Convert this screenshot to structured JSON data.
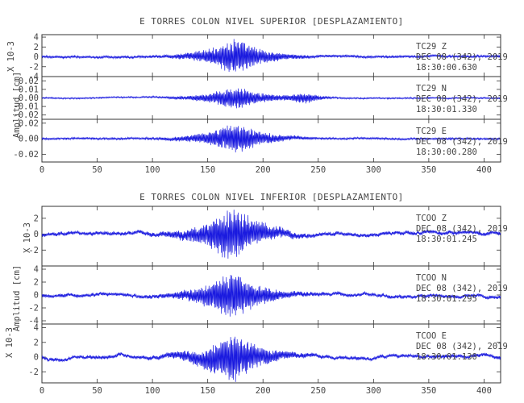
{
  "colors": {
    "trace": "#1a1adf",
    "axes": "#333333",
    "text": "#444444"
  },
  "xaxis": {
    "range": [
      0,
      415
    ],
    "ticks": [
      "0",
      "50",
      "100",
      "150",
      "200",
      "250",
      "300",
      "350",
      "400"
    ]
  },
  "top": {
    "title": "E TORRES COLON NIVEL SUPERIOR [DESPLAZAMIENTO]",
    "ylabel": "Amplitud [cm]",
    "multiplier_label": "X 10-3",
    "panels": [
      {
        "station": "TC29",
        "component": "Z",
        "date": "DEC 08 (342), 2019",
        "time": "18:30:00.630",
        "ylim": [
          -4,
          4.5
        ],
        "ticks": [
          "4",
          "2",
          "0",
          "-2",
          "-4"
        ],
        "amp": 3.6
      },
      {
        "station": "TC29",
        "component": "N",
        "date": "DEC 08 (342), 2019",
        "time": "18:30:01.330",
        "ylim": [
          -0.025,
          0.025
        ],
        "ticks": [
          "0.02",
          "0.01",
          "0.00",
          "-0.01",
          "-0.02"
        ],
        "amp": 0.013
      },
      {
        "station": "TC29",
        "component": "E",
        "date": "DEC 08 (342), 2019",
        "time": "18:30:00.280",
        "ylim": [
          -0.03,
          0.025
        ],
        "ticks": [
          "0.02",
          "0.00",
          "-0.02"
        ],
        "amp": 0.02
      }
    ]
  },
  "bottom": {
    "title": "E TORRES COLON NIVEL INFERIOR [DESPLAZAMIENTO]",
    "ylabel": "Amplitud [cm]",
    "multiplier_label": "X 10-3",
    "panels": [
      {
        "station": "TCOO",
        "component": "Z",
        "date": "DEC 08 (342), 2019",
        "time": "18:30:01.245",
        "ylim": [
          -4,
          3.5
        ],
        "ticks": [
          "2",
          "0",
          "-2"
        ],
        "amp": 3.3
      },
      {
        "station": "TCOO",
        "component": "N",
        "date": "DEC 08 (342), 2019",
        "time": "18:30:01.295",
        "ylim": [
          -4.5,
          4.5
        ],
        "ticks": [
          "4",
          "2",
          "0",
          "-2",
          "-4"
        ],
        "amp": 3.8
      },
      {
        "station": "TCOO",
        "component": "E",
        "date": "DEC 08 (342), 2019",
        "time": "18:30:01.130",
        "ylim": [
          -3.5,
          4.5
        ],
        "ticks": [
          "4",
          "2",
          "0",
          "-2"
        ],
        "amp": 3.4
      }
    ]
  },
  "chart_data": [
    {
      "type": "line",
      "title": "E TORRES COLON NIVEL SUPERIOR [DESPLAZAMIENTO]",
      "xlabel": "",
      "ylabel": "Amplitud [cm]",
      "xlim": [
        0,
        415
      ],
      "series": [
        {
          "name": "TC29 Z",
          "ylim": [
            -4,
            4.5
          ],
          "envelope_peak_x": 175,
          "peak_abs_amplitude": 3.6
        },
        {
          "name": "TC29 N",
          "ylim": [
            -0.025,
            0.025
          ],
          "envelope_peak_x": 180,
          "peak_abs_amplitude": 0.013
        },
        {
          "name": "TC29 E",
          "ylim": [
            -0.03,
            0.025
          ],
          "envelope_peak_x": 175,
          "peak_abs_amplitude": 0.02
        }
      ]
    },
    {
      "type": "line",
      "title": "E TORRES COLON NIVEL INFERIOR [DESPLAZAMIENTO]",
      "xlabel": "",
      "ylabel": "Amplitud [cm]",
      "xlim": [
        0,
        415
      ],
      "series": [
        {
          "name": "TCOO Z",
          "ylim": [
            -4,
            3.5
          ],
          "envelope_peak_x": 175,
          "peak_abs_amplitude": 3.3
        },
        {
          "name": "TCOO N",
          "ylim": [
            -4.5,
            4.5
          ],
          "envelope_peak_x": 170,
          "peak_abs_amplitude": 3.8
        },
        {
          "name": "TCOO E",
          "ylim": [
            -3.5,
            4.5
          ],
          "envelope_peak_x": 170,
          "peak_abs_amplitude": 3.4
        }
      ]
    }
  ]
}
